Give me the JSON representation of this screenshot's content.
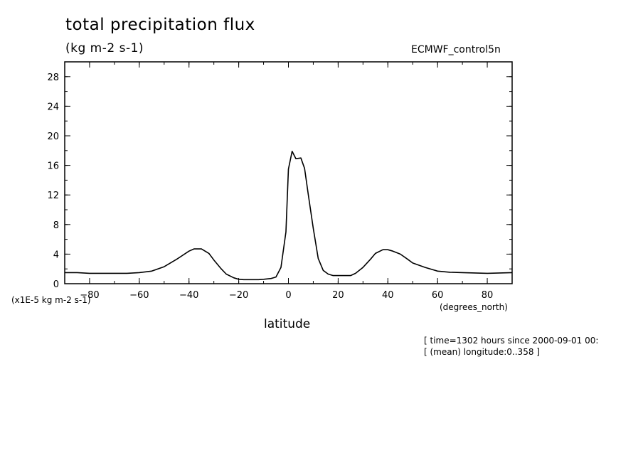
{
  "chart_data": {
    "type": "line",
    "title": "total precipitation flux",
    "units_label": "(kg m-2 s-1)",
    "dataset": "ECMWF_control5n",
    "y_scale_label": "(x1E-5 kg m-2 s-1)",
    "xlabel": "latitude",
    "x_units": "(degrees_north)",
    "xlim": [
      -90,
      90
    ],
    "ylim": [
      0,
      30
    ],
    "x_ticks": [
      -80,
      -60,
      -40,
      -20,
      0,
      20,
      40,
      60,
      80
    ],
    "y_ticks": [
      0,
      4,
      8,
      12,
      16,
      20,
      24,
      28
    ],
    "grid": false,
    "series": [
      {
        "x": [
          -90,
          -85,
          -80,
          -75,
          -70,
          -65,
          -60,
          -55,
          -50,
          -45,
          -40,
          -38,
          -35,
          -32,
          -30,
          -27,
          -25,
          -22,
          -20,
          -18,
          -15,
          -12,
          -10,
          -7,
          -5,
          -3,
          -1,
          0,
          1.5,
          3,
          5,
          6.5,
          8,
          10,
          12,
          14,
          16,
          18,
          20,
          25,
          27,
          30,
          33,
          35,
          38,
          40,
          42,
          45,
          48,
          50,
          55,
          60,
          65,
          70,
          75,
          80,
          85,
          90
        ],
        "y": [
          1.5,
          1.5,
          1.4,
          1.4,
          1.4,
          1.4,
          1.5,
          1.7,
          2.3,
          3.3,
          4.4,
          4.7,
          4.7,
          4.1,
          3.2,
          2.0,
          1.3,
          0.8,
          0.6,
          0.55,
          0.55,
          0.55,
          0.6,
          0.7,
          0.9,
          2.2,
          7.0,
          15.5,
          17.9,
          16.9,
          17.0,
          15.6,
          12.0,
          7.5,
          3.4,
          1.8,
          1.3,
          1.1,
          1.1,
          1.1,
          1.4,
          2.2,
          3.3,
          4.1,
          4.6,
          4.6,
          4.4,
          4.0,
          3.3,
          2.8,
          2.2,
          1.7,
          1.55,
          1.5,
          1.45,
          1.4,
          1.45,
          1.5
        ]
      }
    ]
  },
  "meta": {
    "line1": "[ time=1302 hours since 2000-09-01 00:",
    "line2": "[ (mean) longitude:0..358 ]"
  }
}
